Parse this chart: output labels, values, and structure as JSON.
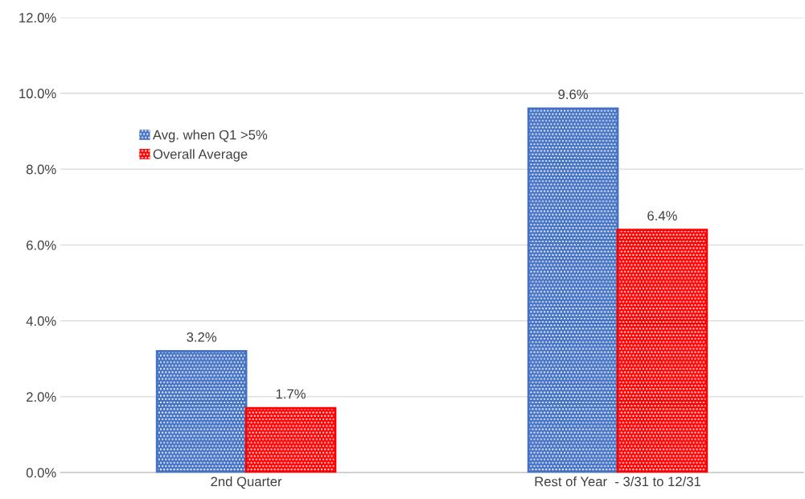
{
  "chart_data": {
    "type": "bar",
    "categories": [
      "2nd Quarter",
      "Rest of Year  - 3/31 to 12/31"
    ],
    "series": [
      {
        "name": "Avg. when Q1 >5%",
        "color": "#4472c4",
        "values": [
          3.2,
          9.6
        ],
        "value_labels": [
          "3.2%",
          "9.6%"
        ]
      },
      {
        "name": "Overall Average",
        "color": "#ff0000",
        "values": [
          1.7,
          6.4
        ],
        "value_labels": [
          "1.7%",
          "6.4%"
        ]
      }
    ],
    "ylim": [
      0,
      12
    ],
    "yticks": [
      {
        "value": 0,
        "label": "0.0%"
      },
      {
        "value": 2,
        "label": "2.0%"
      },
      {
        "value": 4,
        "label": "4.0%"
      },
      {
        "value": 6,
        "label": "6.0%"
      },
      {
        "value": 8,
        "label": "8.0%"
      },
      {
        "value": 10,
        "label": "10.0%"
      },
      {
        "value": 12,
        "label": "12.0%"
      }
    ],
    "grid": "y",
    "legend": "top left"
  }
}
